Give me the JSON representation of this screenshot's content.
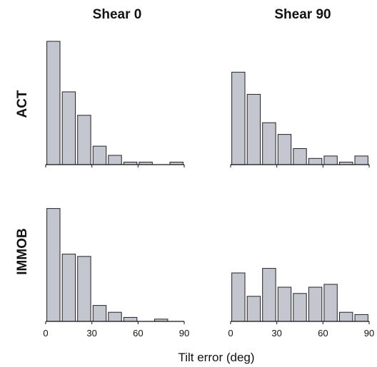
{
  "figure": {
    "column_titles": [
      "Shear 0",
      "Shear 90"
    ],
    "row_labels": [
      "ACT",
      "IMMOB"
    ],
    "xlabel": "Tilt error (deg)",
    "bar_color": "#c3c6cf",
    "edge_color": "#222222"
  },
  "chart_data": [
    {
      "type": "bar",
      "panel": "ACT / Shear 0",
      "bin_width": 10,
      "x": [
        5,
        15,
        25,
        35,
        45,
        55,
        65,
        75,
        85
      ],
      "values": [
        1.0,
        0.59,
        0.4,
        0.15,
        0.075,
        0.02,
        0.02,
        0.0,
        0.02
      ],
      "xlim": [
        0,
        90
      ],
      "xticks": [
        0,
        30,
        60,
        90
      ],
      "ylim": [
        0,
        1.0
      ]
    },
    {
      "type": "bar",
      "panel": "ACT / Shear 90",
      "bin_width": 10,
      "x": [
        5,
        15,
        25,
        35,
        45,
        55,
        65,
        75,
        85
      ],
      "values": [
        0.75,
        0.57,
        0.34,
        0.245,
        0.13,
        0.05,
        0.07,
        0.02,
        0.07
      ],
      "xlim": [
        0,
        90
      ],
      "xticks": [
        0,
        30,
        60,
        90
      ],
      "ylim": [
        0,
        1.0
      ]
    },
    {
      "type": "bar",
      "panel": "IMMOB / Shear 0",
      "bin_width": 10,
      "x": [
        5,
        15,
        25,
        35,
        45,
        55,
        65,
        75,
        85
      ],
      "values": [
        0.99,
        0.59,
        0.57,
        0.14,
        0.08,
        0.035,
        0.0,
        0.02,
        0.0
      ],
      "xlim": [
        0,
        90
      ],
      "xticks": [
        0,
        30,
        60,
        90
      ],
      "xtick_labels": [
        "0",
        "30",
        "60",
        "90"
      ],
      "ylim": [
        0,
        1.0
      ]
    },
    {
      "type": "bar",
      "panel": "IMMOB / Shear 90",
      "bin_width": 10,
      "x": [
        5,
        15,
        25,
        35,
        45,
        55,
        65,
        75,
        85
      ],
      "values": [
        0.425,
        0.22,
        0.465,
        0.3,
        0.245,
        0.3,
        0.325,
        0.08,
        0.06
      ],
      "xlim": [
        0,
        90
      ],
      "xticks": [
        0,
        30,
        60,
        90
      ],
      "xtick_labels": [
        "0",
        "30",
        "60",
        "90"
      ],
      "ylim": [
        0,
        1.0
      ]
    }
  ]
}
